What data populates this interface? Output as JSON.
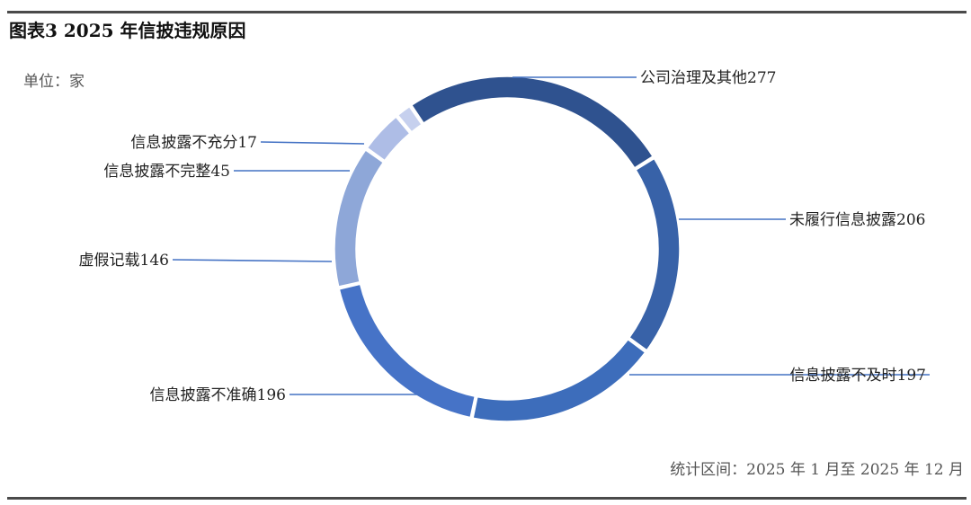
{
  "figure": {
    "title": "图表3  2025 年信披违规原因",
    "unit": "单位：家",
    "footnote": "统计区间：2025 年 1 月至 2025 年 12 月"
  },
  "chart_data": {
    "type": "pie",
    "variant": "donut",
    "title": "",
    "categories": [
      "公司治理及其他",
      "未履行信息披露",
      "信息披露不及时",
      "信息披露不准确",
      "虚假记载",
      "信息披露不完整",
      "信息披露不充分"
    ],
    "values": [
      277,
      206,
      197,
      196,
      146,
      45,
      17
    ],
    "labels": [
      "公司治理及其他277",
      "未履行信息披露206",
      "信息披露不及时197",
      "信息披露不准确196",
      "虚假记载146",
      "信息披露不完整45",
      "信息披露不充分17"
    ],
    "colors": [
      "#2f528f",
      "#3862a8",
      "#3d6dbb",
      "#4673c7",
      "#8ea7d8",
      "#aebde6",
      "#c6d0ee"
    ],
    "legend": "none",
    "grid": false
  }
}
